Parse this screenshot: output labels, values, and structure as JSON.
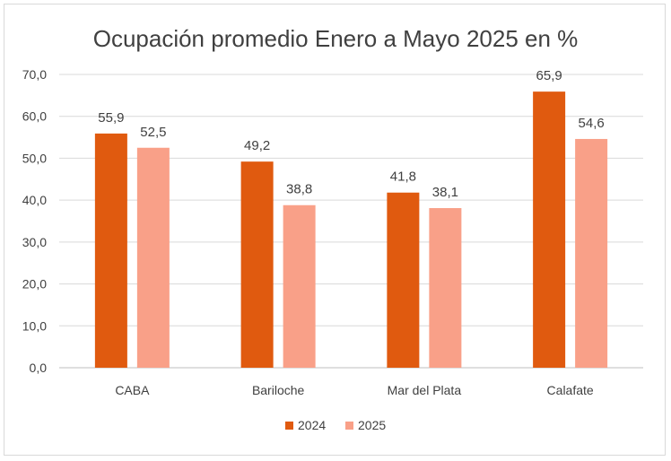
{
  "chart_data": {
    "type": "bar",
    "title": "Ocupación promedio Enero a Mayo 2025 en %",
    "categories": [
      "CABA",
      "Bariloche",
      "Mar del Plata",
      "Calafate"
    ],
    "series": [
      {
        "name": "2024",
        "color": "#e05a0f",
        "values": [
          55.9,
          49.2,
          41.8,
          65.9
        ],
        "labels": [
          "55,9",
          "49,2",
          "41,8",
          "65,9"
        ]
      },
      {
        "name": "2025",
        "color": "#f9a088",
        "values": [
          52.5,
          38.8,
          38.1,
          54.6
        ],
        "labels": [
          "52,5",
          "38,8",
          "38,1",
          "54,6"
        ]
      }
    ],
    "ylim": [
      0,
      70
    ],
    "yticks": [
      0,
      10,
      20,
      30,
      40,
      50,
      60,
      70
    ],
    "ytick_labels": [
      "0,0",
      "10,0",
      "20,0",
      "30,0",
      "40,0",
      "50,0",
      "60,0",
      "70,0"
    ],
    "xlabel": "",
    "ylabel": "",
    "grid": true,
    "legend": "bottom-center",
    "gridline_color": "#d9d9d9"
  }
}
